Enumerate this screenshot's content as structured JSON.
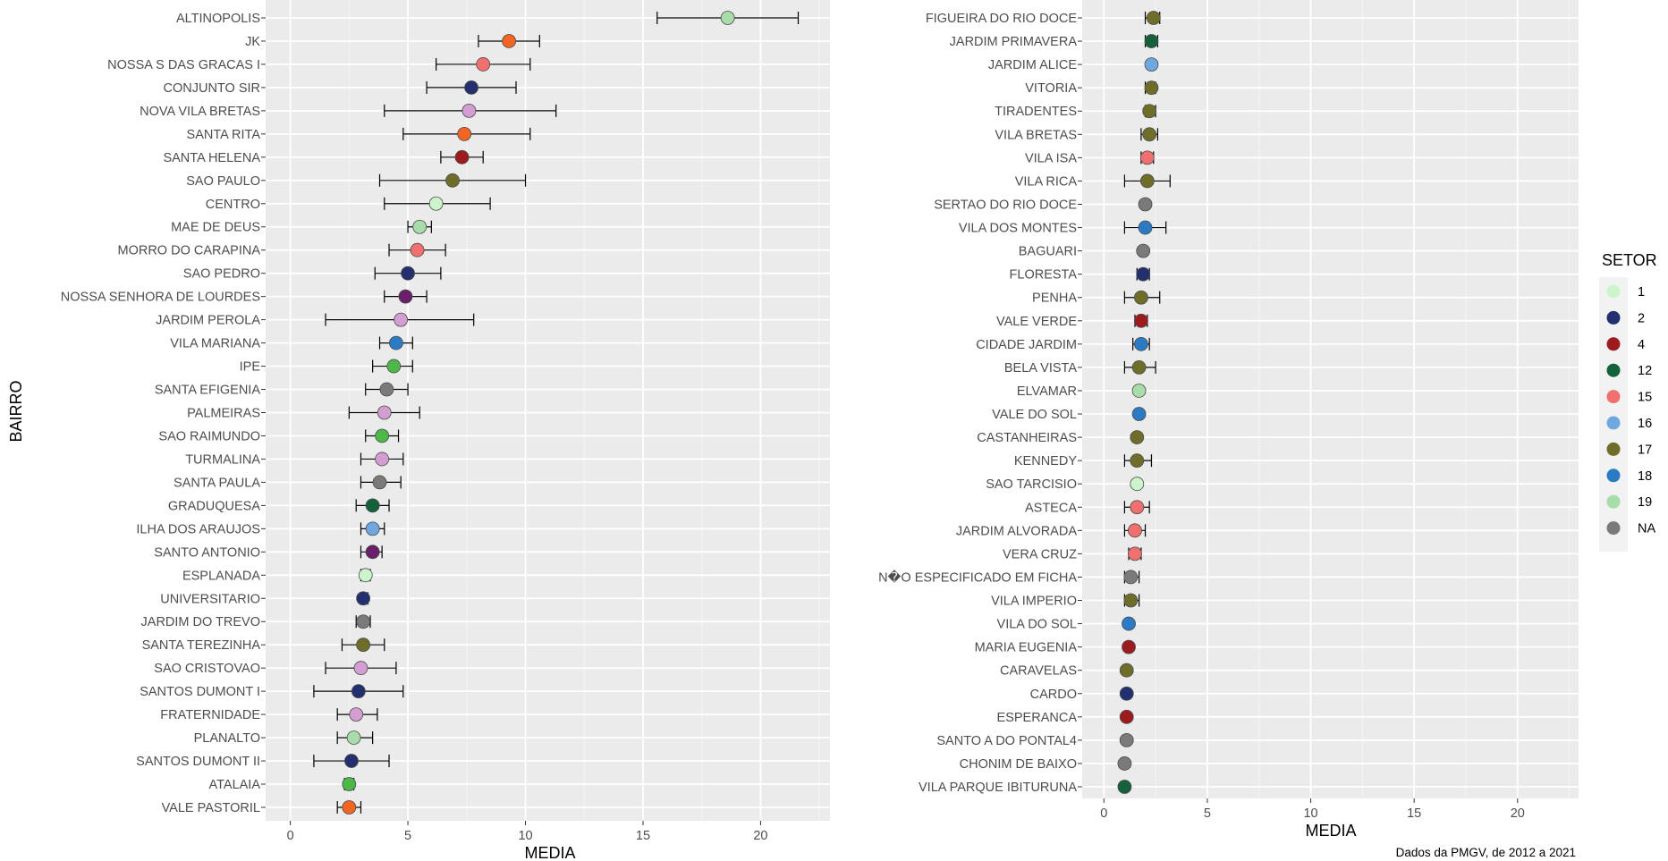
{
  "chart_data": [
    {
      "type": "scatter",
      "panel": "left",
      "xlabel": "MEDIA",
      "ylabel": "BAIRRO",
      "xlim": [
        -1.05,
        22.95
      ],
      "xticks": [
        0,
        5,
        10,
        15,
        20
      ],
      "grid": true,
      "points": [
        {
          "bairro": "ALTINOPOLIS",
          "media": 18.6,
          "lo": 15.6,
          "hi": 21.6,
          "setor": "19"
        },
        {
          "bairro": "JK",
          "media": 9.3,
          "lo": 8.0,
          "hi": 10.6,
          "setor": "NA15"
        },
        {
          "bairro": "NOSSA S DAS GRACAS I",
          "media": 8.2,
          "lo": 6.2,
          "hi": 10.2,
          "setor": "15"
        },
        {
          "bairro": "CONJUNTO SIR",
          "media": 7.7,
          "lo": 5.8,
          "hi": 9.6,
          "setor": "2"
        },
        {
          "bairro": "NOVA VILA BRETAS",
          "media": 7.6,
          "lo": 4.0,
          "hi": 11.3,
          "setor": "P"
        },
        {
          "bairro": "SANTA RITA",
          "media": 7.4,
          "lo": 4.8,
          "hi": 10.2,
          "setor": "NA15"
        },
        {
          "bairro": "SANTA HELENA",
          "media": 7.3,
          "lo": 6.4,
          "hi": 8.2,
          "setor": "4"
        },
        {
          "bairro": "SAO PAULO",
          "media": 6.9,
          "lo": 3.8,
          "hi": 10.0,
          "setor": "17"
        },
        {
          "bairro": "CENTRO",
          "media": 6.2,
          "lo": 4.0,
          "hi": 8.5,
          "setor": "1"
        },
        {
          "bairro": "MAE DE DEUS",
          "media": 5.5,
          "lo": 5.0,
          "hi": 6.0,
          "setor": "19"
        },
        {
          "bairro": "MORRO DO CARAPINA",
          "media": 5.4,
          "lo": 4.2,
          "hi": 6.6,
          "setor": "15"
        },
        {
          "bairro": "SAO PEDRO",
          "media": 5.0,
          "lo": 3.6,
          "hi": 6.4,
          "setor": "2"
        },
        {
          "bairro": "NOSSA SENHORA DE LOURDES",
          "media": 4.9,
          "lo": 4.0,
          "hi": 5.8,
          "setor": "PU"
        },
        {
          "bairro": "JARDIM PEROLA",
          "media": 4.7,
          "lo": 1.5,
          "hi": 7.8,
          "setor": "P"
        },
        {
          "bairro": "VILA MARIANA",
          "media": 4.5,
          "lo": 3.8,
          "hi": 5.2,
          "setor": "18"
        },
        {
          "bairro": "IPE",
          "media": 4.4,
          "lo": 3.5,
          "hi": 5.2,
          "setor": "G"
        },
        {
          "bairro": "SANTA EFIGENIA",
          "media": 4.1,
          "lo": 3.2,
          "hi": 5.0,
          "setor": "NA"
        },
        {
          "bairro": "PALMEIRAS",
          "media": 4.0,
          "lo": 2.5,
          "hi": 5.5,
          "setor": "P"
        },
        {
          "bairro": "SAO RAIMUNDO",
          "media": 3.9,
          "lo": 3.2,
          "hi": 4.6,
          "setor": "G"
        },
        {
          "bairro": "TURMALINA",
          "media": 3.9,
          "lo": 3.0,
          "hi": 4.8,
          "setor": "P"
        },
        {
          "bairro": "SANTA PAULA",
          "media": 3.8,
          "lo": 3.0,
          "hi": 4.7,
          "setor": "NA"
        },
        {
          "bairro": "GRADUQUESA",
          "media": 3.5,
          "lo": 2.8,
          "hi": 4.2,
          "setor": "12"
        },
        {
          "bairro": "ILHA DOS ARAUJOS",
          "media": 3.5,
          "lo": 3.0,
          "hi": 4.0,
          "setor": "16"
        },
        {
          "bairro": "SANTO ANTONIO",
          "media": 3.5,
          "lo": 3.0,
          "hi": 3.9,
          "setor": "PU"
        },
        {
          "bairro": "ESPLANADA",
          "media": 3.2,
          "lo": 3.0,
          "hi": 3.4,
          "setor": "1"
        },
        {
          "bairro": "UNIVERSITARIO",
          "media": 3.1,
          "lo": 3.0,
          "hi": 3.3,
          "setor": "2"
        },
        {
          "bairro": "JARDIM DO TREVO",
          "media": 3.1,
          "lo": 2.8,
          "hi": 3.4,
          "setor": "NA"
        },
        {
          "bairro": "SANTA TEREZINHA",
          "media": 3.1,
          "lo": 2.2,
          "hi": 4.0,
          "setor": "17"
        },
        {
          "bairro": "SAO CRISTOVAO",
          "media": 3.0,
          "lo": 1.5,
          "hi": 4.5,
          "setor": "P"
        },
        {
          "bairro": "SANTOS DUMONT I",
          "media": 2.9,
          "lo": 1.0,
          "hi": 4.8,
          "setor": "2"
        },
        {
          "bairro": "FRATERNIDADE",
          "media": 2.8,
          "lo": 2.0,
          "hi": 3.7,
          "setor": "P"
        },
        {
          "bairro": "PLANALTO",
          "media": 2.7,
          "lo": 2.0,
          "hi": 3.5,
          "setor": "19"
        },
        {
          "bairro": "SANTOS DUMONT II",
          "media": 2.6,
          "lo": 1.0,
          "hi": 4.2,
          "setor": "2"
        },
        {
          "bairro": "ATALAIA",
          "media": 2.5,
          "lo": 2.3,
          "hi": 2.7,
          "setor": "G"
        },
        {
          "bairro": "VALE PASTORIL",
          "media": 2.5,
          "lo": 2.0,
          "hi": 3.0,
          "setor": "NA15"
        }
      ]
    },
    {
      "type": "scatter",
      "panel": "right",
      "xlabel": "MEDIA",
      "xlim": [
        -1.05,
        22.95
      ],
      "xticks": [
        0,
        5,
        10,
        15,
        20
      ],
      "grid": true,
      "points": [
        {
          "bairro": "FIGUEIRA DO RIO DOCE",
          "media": 2.4,
          "lo": 2.0,
          "hi": 2.7,
          "setor": "17"
        },
        {
          "bairro": "JARDIM PRIMAVERA",
          "media": 2.3,
          "lo": 2.0,
          "hi": 2.6,
          "setor": "12"
        },
        {
          "bairro": "JARDIM ALICE",
          "media": 2.3,
          "setor": "16"
        },
        {
          "bairro": "VITORIA",
          "media": 2.3,
          "lo": 2.0,
          "hi": 2.5,
          "setor": "17"
        },
        {
          "bairro": "TIRADENTES",
          "media": 2.2,
          "lo": 2.0,
          "hi": 2.5,
          "setor": "17"
        },
        {
          "bairro": "VILA BRETAS",
          "media": 2.2,
          "lo": 1.8,
          "hi": 2.6,
          "setor": "17"
        },
        {
          "bairro": "VILA ISA",
          "media": 2.1,
          "lo": 1.8,
          "hi": 2.4,
          "setor": "15"
        },
        {
          "bairro": "VILA RICA",
          "media": 2.1,
          "lo": 1.0,
          "hi": 3.2,
          "setor": "17"
        },
        {
          "bairro": "SERTAO DO RIO DOCE",
          "media": 2.0,
          "setor": "NA"
        },
        {
          "bairro": "VILA DOS MONTES",
          "media": 2.0,
          "lo": 1.0,
          "hi": 3.0,
          "setor": "18"
        },
        {
          "bairro": "BAGUARI",
          "media": 1.9,
          "setor": "NA"
        },
        {
          "bairro": "FLORESTA",
          "media": 1.9,
          "lo": 1.6,
          "hi": 2.2,
          "setor": "2"
        },
        {
          "bairro": "PENHA",
          "media": 1.8,
          "lo": 1.0,
          "hi": 2.7,
          "setor": "17"
        },
        {
          "bairro": "VALE VERDE",
          "media": 1.8,
          "lo": 1.5,
          "hi": 2.1,
          "setor": "4"
        },
        {
          "bairro": "CIDADE JARDIM",
          "media": 1.8,
          "lo": 1.4,
          "hi": 2.2,
          "setor": "18"
        },
        {
          "bairro": "BELA VISTA",
          "media": 1.7,
          "lo": 1.0,
          "hi": 2.5,
          "setor": "17"
        },
        {
          "bairro": "ELVAMAR",
          "media": 1.7,
          "setor": "19"
        },
        {
          "bairro": "VALE DO SOL",
          "media": 1.7,
          "setor": "18"
        },
        {
          "bairro": "CASTANHEIRAS",
          "media": 1.6,
          "setor": "17"
        },
        {
          "bairro": "KENNEDY",
          "media": 1.6,
          "lo": 1.0,
          "hi": 2.3,
          "setor": "17"
        },
        {
          "bairro": "SAO TARCISIO",
          "media": 1.6,
          "setor": "1"
        },
        {
          "bairro": "ASTECA",
          "media": 1.6,
          "lo": 1.0,
          "hi": 2.2,
          "setor": "15"
        },
        {
          "bairro": "JARDIM ALVORADA",
          "media": 1.5,
          "lo": 1.0,
          "hi": 2.0,
          "setor": "15"
        },
        {
          "bairro": "VERA CRUZ",
          "media": 1.5,
          "lo": 1.2,
          "hi": 1.8,
          "setor": "15"
        },
        {
          "bairro": "N�O ESPECIFICADO EM FICHA",
          "media": 1.3,
          "lo": 1.0,
          "hi": 1.7,
          "setor": "NA"
        },
        {
          "bairro": "VILA IMPERIO",
          "media": 1.3,
          "lo": 1.0,
          "hi": 1.7,
          "setor": "17"
        },
        {
          "bairro": "VILA DO SOL",
          "media": 1.2,
          "setor": "18"
        },
        {
          "bairro": "MARIA EUGENIA",
          "media": 1.2,
          "setor": "4"
        },
        {
          "bairro": "CARAVELAS",
          "media": 1.1,
          "setor": "17"
        },
        {
          "bairro": "CARDO",
          "media": 1.1,
          "setor": "2"
        },
        {
          "bairro": "ESPERANCA",
          "media": 1.1,
          "setor": "4"
        },
        {
          "bairro": "SANTO A DO PONTAL4",
          "media": 1.1,
          "setor": "NA"
        },
        {
          "bairro": "CHONIM DE BAIXO",
          "media": 1.0,
          "setor": "NA"
        },
        {
          "bairro": "VILA PARQUE IBITURUNA",
          "media": 1.0,
          "setor": "12"
        }
      ]
    }
  ],
  "legend": {
    "title": "SETOR",
    "entries": [
      {
        "label": "1",
        "color": "#ccf5cc"
      },
      {
        "label": "2",
        "color": "#233070"
      },
      {
        "label": "4",
        "color": "#9b1b1f"
      },
      {
        "label": "12",
        "color": "#14613b"
      },
      {
        "label": "15",
        "color": "#f07070"
      },
      {
        "label": "16",
        "color": "#6fa8e0"
      },
      {
        "label": "17",
        "color": "#6e6e2a"
      },
      {
        "label": "18",
        "color": "#2b7bc4"
      },
      {
        "label": "19",
        "color": "#a8dca8"
      },
      {
        "label": "NA",
        "color": "#7a7a7a"
      }
    ]
  },
  "extra_colors": {
    "NA15": "#f26522",
    "P": "#d39fd3",
    "PU": "#6a1f6a",
    "G": "#4db848"
  },
  "caption": "Dados da PMGV, de 2012 a 2021"
}
